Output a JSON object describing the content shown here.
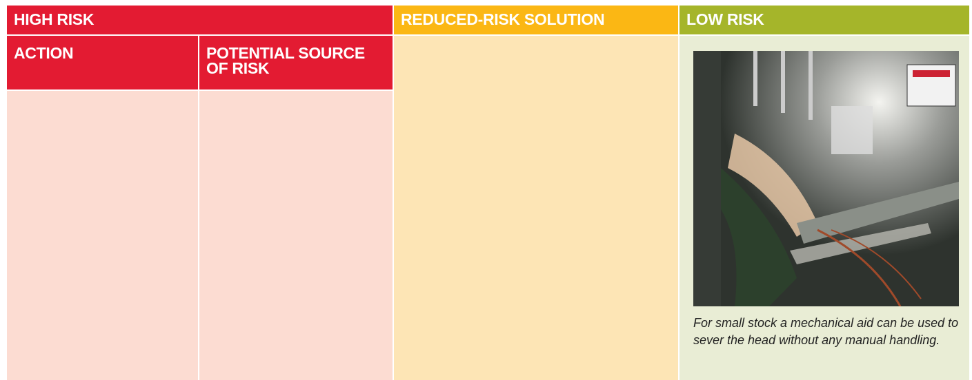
{
  "table": {
    "headers": {
      "high_risk": "HIGH RISK",
      "reduced_risk": "REDUCED-RISK SOLUTION",
      "low_risk": "LOW RISK"
    },
    "subheaders": {
      "action": "ACTION",
      "potential_source": "POTENTIAL SOURCE OF RISK"
    },
    "low_risk_caption": "For small stock a mechanical aid can be used to sever the head without any manual handling."
  }
}
